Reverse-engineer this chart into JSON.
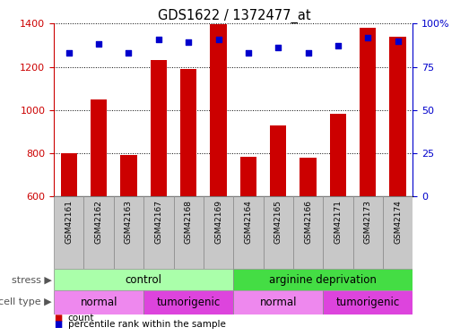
{
  "title": "GDS1622 / 1372477_at",
  "samples": [
    "GSM42161",
    "GSM42162",
    "GSM42163",
    "GSM42167",
    "GSM42168",
    "GSM42169",
    "GSM42164",
    "GSM42165",
    "GSM42166",
    "GSM42171",
    "GSM42173",
    "GSM42174"
  ],
  "counts": [
    800,
    1047,
    793,
    1232,
    1189,
    1395,
    783,
    930,
    779,
    983,
    1381,
    1338
  ],
  "percentile_ranks": [
    83,
    88,
    83,
    91,
    89,
    91,
    83,
    86,
    83,
    87,
    92,
    90
  ],
  "ylim_left": [
    600,
    1400
  ],
  "ylim_right": [
    0,
    100
  ],
  "yticks_left": [
    600,
    800,
    1000,
    1200,
    1400
  ],
  "yticks_right": [
    0,
    25,
    50,
    75,
    100
  ],
  "bar_color": "#cc0000",
  "dot_color": "#0000cc",
  "bar_width": 0.55,
  "stress_groups": [
    {
      "label": "control",
      "span": [
        0,
        6
      ],
      "color": "#aaffaa"
    },
    {
      "label": "arginine deprivation",
      "span": [
        6,
        12
      ],
      "color": "#44dd44"
    }
  ],
  "cell_type_groups": [
    {
      "label": "normal",
      "span": [
        0,
        3
      ],
      "color": "#ee88ee"
    },
    {
      "label": "tumorigenic",
      "span": [
        3,
        6
      ],
      "color": "#dd44dd"
    },
    {
      "label": "normal",
      "span": [
        6,
        9
      ],
      "color": "#ee88ee"
    },
    {
      "label": "tumorigenic",
      "span": [
        9,
        12
      ],
      "color": "#dd44dd"
    }
  ],
  "legend_count_label": "count",
  "legend_pct_label": "percentile rank within the sample",
  "stress_label": "stress",
  "cell_type_label": "cell type",
  "tick_color_left": "#cc0000",
  "tick_color_right": "#0000cc",
  "sample_bg_color": "#c8c8c8",
  "bar_bottom": 600
}
